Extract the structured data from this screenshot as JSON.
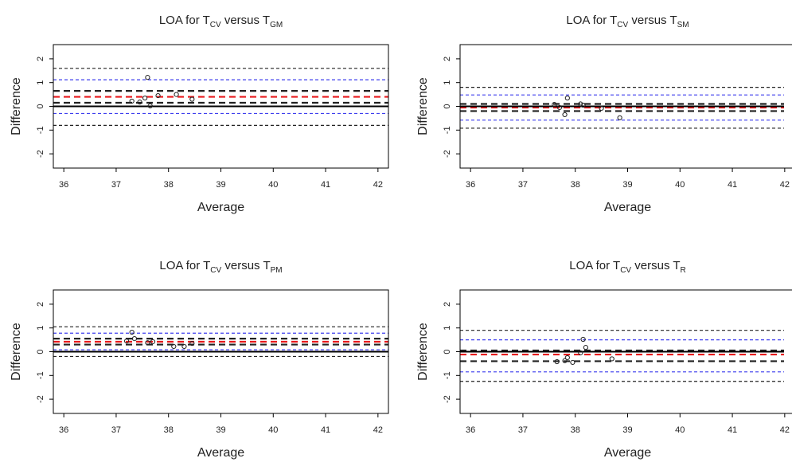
{
  "colors": {
    "zero": "#000000",
    "bias": "#e8191c",
    "ci_black": "#222222",
    "ci_blue": "#3f3fee",
    "frame": "#000000",
    "point": "#222222"
  },
  "chart_data": [
    {
      "type": "scatter",
      "title": {
        "pre": "LOA for T",
        "sub1": "CV",
        "mid": " versus T",
        "sub2": "GM"
      },
      "xlabel": "Average",
      "ylabel": "Difference",
      "xlim": [
        35.8,
        42.2
      ],
      "ylim": [
        -2.6,
        2.6
      ],
      "xticks": [
        36,
        37,
        38,
        39,
        40,
        41,
        42
      ],
      "yticks": [
        -2,
        -1,
        0,
        1,
        2
      ],
      "ytick_labels": [
        "-2",
        "-1",
        "0",
        "1",
        "2"
      ],
      "grid": false,
      "points": {
        "x": [
          37.3,
          37.45,
          37.55,
          37.6,
          37.65,
          37.8,
          38.15,
          38.45
        ],
        "y": [
          0.22,
          0.18,
          0.35,
          1.22,
          0.02,
          0.45,
          0.5,
          0.3
        ]
      },
      "lines": {
        "zero": 0.0,
        "bias": 0.4,
        "loa_upper": 1.6,
        "loa_lower": -0.8,
        "bias_ci": [
          0.15,
          0.65
        ],
        "upper_ci": 1.12,
        "lower_ci": -0.3
      }
    },
    {
      "type": "scatter",
      "title": {
        "pre": "LOA for T",
        "sub1": "CV",
        "mid": " versus T",
        "sub2": "SM"
      },
      "xlabel": "Average",
      "ylabel": "Difference",
      "xlim": [
        35.8,
        42.2
      ],
      "ylim": [
        -2.6,
        2.6
      ],
      "xticks": [
        36,
        37,
        38,
        39,
        40,
        41,
        42
      ],
      "yticks": [
        -2,
        -1,
        0,
        1,
        2
      ],
      "ytick_labels": [
        "-2",
        "-1",
        "0",
        "1",
        "2"
      ],
      "grid": false,
      "points": {
        "x": [
          37.6,
          37.7,
          37.8,
          37.85,
          38.1,
          38.15,
          38.5,
          38.85
        ],
        "y": [
          0.08,
          -0.05,
          -0.35,
          0.35,
          0.1,
          0.05,
          -0.08,
          -0.48
        ]
      },
      "lines": {
        "zero": 0.0,
        "bias": -0.05,
        "loa_upper": 0.8,
        "loa_lower": -0.92,
        "bias_ci": [
          -0.2,
          0.1
        ],
        "upper_ci": 0.48,
        "lower_ci": -0.58
      }
    },
    {
      "type": "scatter",
      "title": {
        "pre": "LOA for T",
        "sub1": "CV",
        "mid": " versus T",
        "sub2": "PM"
      },
      "xlabel": "Average",
      "ylabel": "Difference",
      "xlim": [
        35.8,
        42.2
      ],
      "ylim": [
        -2.6,
        2.6
      ],
      "xticks": [
        36,
        37,
        38,
        39,
        40,
        41,
        42
      ],
      "yticks": [
        -2,
        -1,
        0,
        1,
        2
      ],
      "ytick_labels": [
        "-2",
        "-1",
        "0",
        "1",
        "2"
      ],
      "grid": false,
      "points": {
        "x": [
          37.2,
          37.3,
          37.35,
          37.6,
          37.7,
          38.1,
          38.3,
          38.45
        ],
        "y": [
          0.45,
          0.82,
          0.55,
          0.38,
          0.42,
          0.22,
          0.22,
          0.35
        ]
      },
      "lines": {
        "zero": 0.0,
        "bias": 0.42,
        "loa_upper": 1.05,
        "loa_lower": -0.2,
        "bias_ci": [
          0.3,
          0.55
        ],
        "upper_ci": 0.78,
        "lower_ci": 0.08
      }
    },
    {
      "type": "scatter",
      "title": {
        "pre": "LOA for T",
        "sub1": "CV",
        "mid": " versus T",
        "sub2": "R"
      },
      "xlabel": "Average",
      "ylabel": "Difference",
      "xlim": [
        35.8,
        42.2
      ],
      "ylim": [
        -2.6,
        2.6
      ],
      "xticks": [
        36,
        37,
        38,
        39,
        40,
        41,
        42
      ],
      "yticks": [
        -2,
        -1,
        0,
        1,
        2
      ],
      "ytick_labels": [
        "-2",
        "-1",
        "0",
        "1",
        "2"
      ],
      "grid": false,
      "points": {
        "x": [
          37.65,
          37.8,
          37.85,
          37.95,
          38.1,
          38.15,
          38.2,
          38.7
        ],
        "y": [
          -0.42,
          -0.38,
          -0.25,
          -0.45,
          -0.05,
          0.52,
          0.18,
          -0.3
        ]
      },
      "lines": {
        "zero": 0.0,
        "bias": -0.12,
        "loa_upper": 0.9,
        "loa_lower": -1.25,
        "bias_ci": [
          -0.4,
          0.05
        ],
        "upper_ci": 0.5,
        "lower_ci": -0.85
      }
    }
  ]
}
